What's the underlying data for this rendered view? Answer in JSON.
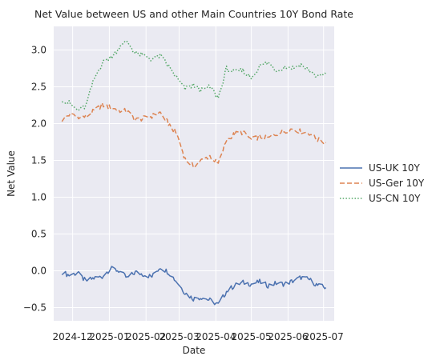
{
  "chart_data": {
    "type": "line",
    "title": "Net Value between US and other Main Countries 10Y Bond Rate",
    "xlabel": "Date",
    "ylabel": "Net Value",
    "xlim": [
      "2024-11-15",
      "2025-07-10"
    ],
    "ylim": [
      -0.68,
      3.32
    ],
    "x_ticks": [
      "2024-12",
      "2025-01",
      "2025-02",
      "2025-03",
      "2025-04",
      "2025-05",
      "2025-06",
      "2025-07"
    ],
    "y_ticks": [
      "−0.5",
      "0.0",
      "0.5",
      "1.0",
      "1.5",
      "2.0",
      "2.5",
      "3.0"
    ],
    "grid": true,
    "legend_position": "right",
    "series": [
      {
        "name": "US-UK 10Y",
        "color": "#4c72b0",
        "style": "solid",
        "points": [
          [
            "2024-11-22",
            -0.02
          ],
          [
            "2024-11-28",
            -0.06
          ],
          [
            "2024-12-05",
            -0.03
          ],
          [
            "2024-12-12",
            -0.14
          ],
          [
            "2024-12-19",
            -0.1
          ],
          [
            "2024-12-26",
            -0.08
          ],
          [
            "2025-01-02",
            0.03
          ],
          [
            "2025-01-09",
            0.0
          ],
          [
            "2025-01-16",
            -0.1
          ],
          [
            "2025-01-23",
            -0.02
          ],
          [
            "2025-01-30",
            -0.05
          ],
          [
            "2025-02-06",
            -0.08
          ],
          [
            "2025-02-13",
            0.05
          ],
          [
            "2025-02-20",
            -0.02
          ],
          [
            "2025-02-27",
            -0.15
          ],
          [
            "2025-03-06",
            -0.3
          ],
          [
            "2025-03-13",
            -0.38
          ],
          [
            "2025-03-20",
            -0.36
          ],
          [
            "2025-03-27",
            -0.4
          ],
          [
            "2025-04-03",
            -0.46
          ],
          [
            "2025-04-10",
            -0.28
          ],
          [
            "2025-04-17",
            -0.2
          ],
          [
            "2025-04-24",
            -0.16
          ],
          [
            "2025-05-01",
            -0.18
          ],
          [
            "2025-05-08",
            -0.15
          ],
          [
            "2025-05-15",
            -0.2
          ],
          [
            "2025-05-22",
            -0.17
          ],
          [
            "2025-05-29",
            -0.18
          ],
          [
            "2025-06-05",
            -0.14
          ],
          [
            "2025-06-12",
            -0.09
          ],
          [
            "2025-06-19",
            -0.12
          ],
          [
            "2025-06-26",
            -0.2
          ],
          [
            "2025-07-03",
            -0.23
          ]
        ]
      },
      {
        "name": "US-Ger 10Y",
        "color": "#dd8452",
        "style": "dashed",
        "points": [
          [
            "2024-11-22",
            2.05
          ],
          [
            "2024-11-28",
            2.12
          ],
          [
            "2024-12-05",
            2.1
          ],
          [
            "2024-12-12",
            2.09
          ],
          [
            "2024-12-19",
            2.17
          ],
          [
            "2024-12-26",
            2.25
          ],
          [
            "2025-01-02",
            2.22
          ],
          [
            "2025-01-09",
            2.18
          ],
          [
            "2025-01-16",
            2.17
          ],
          [
            "2025-01-23",
            2.05
          ],
          [
            "2025-01-30",
            2.07
          ],
          [
            "2025-02-06",
            2.1
          ],
          [
            "2025-02-13",
            2.15
          ],
          [
            "2025-02-20",
            2.0
          ],
          [
            "2025-02-27",
            1.86
          ],
          [
            "2025-03-06",
            1.52
          ],
          [
            "2025-03-13",
            1.42
          ],
          [
            "2025-03-20",
            1.5
          ],
          [
            "2025-03-27",
            1.56
          ],
          [
            "2025-04-03",
            1.45
          ],
          [
            "2025-04-10",
            1.78
          ],
          [
            "2025-04-17",
            1.86
          ],
          [
            "2025-04-24",
            1.88
          ],
          [
            "2025-05-01",
            1.78
          ],
          [
            "2025-05-08",
            1.82
          ],
          [
            "2025-05-15",
            1.8
          ],
          [
            "2025-05-22",
            1.86
          ],
          [
            "2025-05-29",
            1.9
          ],
          [
            "2025-06-05",
            1.93
          ],
          [
            "2025-06-12",
            1.89
          ],
          [
            "2025-06-19",
            1.87
          ],
          [
            "2025-06-26",
            1.78
          ],
          [
            "2025-07-03",
            1.74
          ]
        ]
      },
      {
        "name": "US-CN 10Y",
        "color": "#55a868",
        "style": "dotted",
        "points": [
          [
            "2024-11-22",
            2.33
          ],
          [
            "2024-11-28",
            2.28
          ],
          [
            "2024-12-05",
            2.18
          ],
          [
            "2024-12-12",
            2.23
          ],
          [
            "2024-12-19",
            2.6
          ],
          [
            "2024-12-26",
            2.82
          ],
          [
            "2025-01-02",
            2.9
          ],
          [
            "2025-01-09",
            3.02
          ],
          [
            "2025-01-16",
            3.12
          ],
          [
            "2025-01-23",
            2.95
          ],
          [
            "2025-01-30",
            2.93
          ],
          [
            "2025-02-06",
            2.87
          ],
          [
            "2025-02-13",
            2.92
          ],
          [
            "2025-02-20",
            2.78
          ],
          [
            "2025-02-27",
            2.62
          ],
          [
            "2025-03-06",
            2.47
          ],
          [
            "2025-03-13",
            2.52
          ],
          [
            "2025-03-20",
            2.45
          ],
          [
            "2025-03-27",
            2.5
          ],
          [
            "2025-04-03",
            2.35
          ],
          [
            "2025-04-10",
            2.75
          ],
          [
            "2025-04-17",
            2.7
          ],
          [
            "2025-04-24",
            2.72
          ],
          [
            "2025-05-01",
            2.62
          ],
          [
            "2025-05-08",
            2.78
          ],
          [
            "2025-05-15",
            2.83
          ],
          [
            "2025-05-22",
            2.72
          ],
          [
            "2025-05-29",
            2.77
          ],
          [
            "2025-06-05",
            2.76
          ],
          [
            "2025-06-12",
            2.8
          ],
          [
            "2025-06-19",
            2.72
          ],
          [
            "2025-06-26",
            2.63
          ],
          [
            "2025-07-03",
            2.68
          ]
        ]
      }
    ]
  }
}
